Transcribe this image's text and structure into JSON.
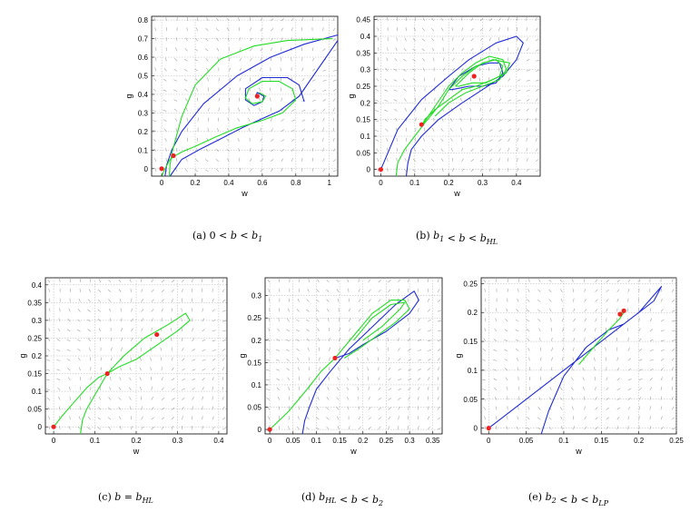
{
  "colors": {
    "blue": "#1f2bd6",
    "green": "#22dd22",
    "red": "#ee2222",
    "quiver": "#9a9a9a"
  },
  "chart_data": [
    {
      "id": "a",
      "type": "line",
      "title": "",
      "xlabel": "w",
      "ylabel": "g",
      "caption_label": "(a)",
      "caption_text": "0 < b < b1",
      "xlim": [
        -0.06,
        1.05
      ],
      "ylim": [
        -0.04,
        0.82
      ],
      "xticks": [
        0,
        0.2,
        0.4,
        0.6,
        0.8,
        1
      ],
      "yticks": [
        0,
        0.1,
        0.2,
        0.3,
        0.4,
        0.5,
        0.6,
        0.7,
        0.8
      ],
      "series": [
        {
          "name": "blue",
          "color": "blue",
          "x": [
            0.02,
            0.03,
            0.06,
            0.12,
            0.25,
            0.45,
            0.65,
            0.85,
            1.05
          ],
          "y": [
            -0.04,
            0.02,
            0.1,
            0.2,
            0.35,
            0.5,
            0.6,
            0.67,
            0.72
          ]
        },
        {
          "name": "blue",
          "color": "blue",
          "x": [
            0.05,
            0.12,
            0.22,
            0.35,
            0.48,
            0.6,
            0.7,
            0.82,
            1.05
          ],
          "y": [
            -0.04,
            0.05,
            0.1,
            0.16,
            0.22,
            0.27,
            0.31,
            0.39,
            0.69
          ]
        },
        {
          "name": "blue",
          "color": "blue",
          "x": [
            0.85,
            0.82,
            0.75,
            0.6,
            0.5,
            0.5,
            0.55,
            0.6,
            0.61,
            0.57,
            0.56
          ],
          "y": [
            0.36,
            0.45,
            0.49,
            0.49,
            0.43,
            0.37,
            0.34,
            0.36,
            0.39,
            0.41,
            0.39
          ]
        },
        {
          "name": "green",
          "color": "green",
          "x": [
            0.045,
            0.05,
            0.06,
            0.08,
            0.12,
            0.2,
            0.35,
            0.55,
            0.75,
            1.02
          ],
          "y": [
            -0.04,
            0.02,
            0.08,
            0.15,
            0.28,
            0.45,
            0.59,
            0.66,
            0.69,
            0.7
          ]
        },
        {
          "name": "green",
          "color": "green",
          "x": [
            0.08,
            0.12,
            0.2,
            0.32,
            0.45,
            0.6,
            0.72,
            0.8,
            0.78,
            0.7,
            0.6,
            0.52,
            0.5,
            0.54,
            0.6,
            0.62,
            0.58
          ],
          "y": [
            0.07,
            0.09,
            0.12,
            0.17,
            0.22,
            0.26,
            0.3,
            0.37,
            0.43,
            0.47,
            0.47,
            0.43,
            0.38,
            0.35,
            0.36,
            0.39,
            0.41
          ]
        },
        {
          "name": "green",
          "color": "green",
          "x": [
            0.0,
            0.02,
            0.05,
            0.08
          ],
          "y": [
            -0.04,
            0.0,
            0.05,
            0.07
          ]
        }
      ],
      "points": {
        "x": [
          0,
          0.07,
          0.57
        ],
        "y": [
          0,
          0.07,
          0.39
        ]
      }
    },
    {
      "id": "b",
      "type": "line",
      "title": "",
      "xlabel": "w",
      "ylabel": "g",
      "caption_label": "(b)",
      "caption_text": "b1 < b < bHL",
      "xlim": [
        -0.02,
        0.47
      ],
      "ylim": [
        -0.02,
        0.46
      ],
      "xticks": [
        0,
        0.1,
        0.2,
        0.3,
        0.4
      ],
      "yticks": [
        0,
        0.05,
        0.1,
        0.15,
        0.2,
        0.25,
        0.3,
        0.35,
        0.4,
        0.45
      ],
      "series": [
        {
          "name": "blue",
          "color": "blue",
          "x": [
            0.075,
            0.08,
            0.09,
            0.12,
            0.17,
            0.24,
            0.3,
            0.36,
            0.4,
            0.42,
            0.4,
            0.34,
            0.26,
            0.2,
            0.12,
            0.05,
            0.0
          ],
          "y": [
            -0.02,
            0.02,
            0.06,
            0.1,
            0.15,
            0.2,
            0.24,
            0.28,
            0.33,
            0.38,
            0.4,
            0.38,
            0.33,
            0.28,
            0.21,
            0.12,
            0.0
          ]
        },
        {
          "name": "blue",
          "color": "blue",
          "x": [
            0.2,
            0.23,
            0.28,
            0.32,
            0.35,
            0.36,
            0.34,
            0.3,
            0.26,
            0.21,
            0.2
          ],
          "y": [
            0.24,
            0.28,
            0.31,
            0.32,
            0.32,
            0.29,
            0.26,
            0.25,
            0.25,
            0.24,
            0.24
          ]
        },
        {
          "name": "green",
          "color": "green",
          "x": [
            0.045,
            0.05,
            0.07,
            0.1,
            0.13,
            0.17,
            0.2,
            0.24,
            0.28,
            0.33,
            0.38,
            0.37,
            0.33,
            0.28,
            0.24,
            0.2,
            0.16,
            0.13,
            0.12
          ],
          "y": [
            -0.02,
            0.02,
            0.06,
            0.1,
            0.14,
            0.19,
            0.24,
            0.28,
            0.31,
            0.33,
            0.32,
            0.29,
            0.27,
            0.25,
            0.24,
            0.21,
            0.18,
            0.15,
            0.13
          ]
        },
        {
          "name": "green",
          "color": "green",
          "x": [
            0.12,
            0.16,
            0.2,
            0.24,
            0.28,
            0.32,
            0.36,
            0.37,
            0.35,
            0.3,
            0.25,
            0.2,
            0.16
          ],
          "y": [
            0.13,
            0.19,
            0.25,
            0.29,
            0.32,
            0.34,
            0.33,
            0.3,
            0.27,
            0.25,
            0.23,
            0.2,
            0.16
          ]
        },
        {
          "name": "green",
          "color": "green",
          "x": [
            0.22,
            0.26,
            0.3,
            0.34,
            0.36,
            0.35,
            0.31,
            0.27,
            0.23,
            0.22
          ],
          "y": [
            0.25,
            0.29,
            0.32,
            0.33,
            0.31,
            0.28,
            0.26,
            0.26,
            0.25,
            0.25
          ]
        }
      ],
      "points": {
        "x": [
          0,
          0.12,
          0.275
        ],
        "y": [
          0,
          0.135,
          0.28
        ]
      }
    },
    {
      "id": "c",
      "type": "line",
      "title": "",
      "xlabel": "w",
      "ylabel": "g",
      "caption_label": "(c)",
      "caption_text": "b = bHL",
      "xlim": [
        -0.02,
        0.42
      ],
      "ylim": [
        -0.02,
        0.42
      ],
      "xticks": [
        0,
        0.1,
        0.2,
        0.3,
        0.4
      ],
      "yticks": [
        0,
        0.05,
        0.1,
        0.15,
        0.2,
        0.25,
        0.3,
        0.35,
        0.4
      ],
      "series": [
        {
          "name": "green",
          "color": "green",
          "x": [
            0.065,
            0.07,
            0.08,
            0.1,
            0.13,
            0.17,
            0.22,
            0.28,
            0.32,
            0.33,
            0.3,
            0.25,
            0.2,
            0.16,
            0.13
          ],
          "y": [
            -0.02,
            0.02,
            0.05,
            0.09,
            0.15,
            0.2,
            0.25,
            0.29,
            0.32,
            0.3,
            0.27,
            0.23,
            0.19,
            0.17,
            0.15
          ]
        },
        {
          "name": "green",
          "color": "green",
          "x": [
            0.0,
            0.02,
            0.05,
            0.08,
            0.11,
            0.13
          ],
          "y": [
            0.0,
            0.03,
            0.07,
            0.11,
            0.14,
            0.15
          ]
        }
      ],
      "points": {
        "x": [
          0,
          0.13,
          0.25
        ],
        "y": [
          0,
          0.15,
          0.26
        ]
      }
    },
    {
      "id": "d",
      "type": "line",
      "title": "",
      "xlabel": "w",
      "ylabel": "g",
      "caption_label": "(d)",
      "caption_text": "bHL < b < b2",
      "xlim": [
        -0.01,
        0.37
      ],
      "ylim": [
        -0.01,
        0.34
      ],
      "xticks": [
        0,
        0.05,
        0.1,
        0.15,
        0.2,
        0.25,
        0.3,
        0.35
      ],
      "yticks": [
        0,
        0.05,
        0.1,
        0.15,
        0.2,
        0.25,
        0.3
      ],
      "series": [
        {
          "name": "blue",
          "color": "blue",
          "x": [
            0.07,
            0.075,
            0.085,
            0.1,
            0.13,
            0.17,
            0.22,
            0.27,
            0.31,
            0.32,
            0.3,
            0.25,
            0.2,
            0.17,
            0.14
          ],
          "y": [
            -0.01,
            0.02,
            0.05,
            0.09,
            0.13,
            0.18,
            0.23,
            0.28,
            0.31,
            0.29,
            0.26,
            0.22,
            0.19,
            0.17,
            0.16
          ]
        },
        {
          "name": "green",
          "color": "green",
          "x": [
            0.0,
            0.04,
            0.08,
            0.11,
            0.14
          ],
          "y": [
            0.0,
            0.04,
            0.09,
            0.13,
            0.16
          ]
        },
        {
          "name": "green",
          "color": "green",
          "x": [
            0.14,
            0.18,
            0.22,
            0.26,
            0.29,
            0.3,
            0.27,
            0.23,
            0.19,
            0.16
          ],
          "y": [
            0.16,
            0.21,
            0.26,
            0.29,
            0.29,
            0.27,
            0.24,
            0.21,
            0.18,
            0.16
          ]
        },
        {
          "name": "green",
          "color": "green",
          "x": [
            0.18,
            0.22,
            0.26,
            0.29,
            0.28,
            0.24,
            0.2
          ],
          "y": [
            0.2,
            0.25,
            0.28,
            0.285,
            0.27,
            0.23,
            0.2
          ]
        }
      ],
      "points": {
        "x": [
          0,
          0.14
        ],
        "y": [
          0,
          0.16
        ]
      }
    },
    {
      "id": "e",
      "type": "line",
      "title": "",
      "xlabel": "w",
      "ylabel": "g",
      "caption_label": "(e)",
      "caption_text": "b2 < b < bLP",
      "xlim": [
        -0.01,
        0.25
      ],
      "ylim": [
        -0.01,
        0.26
      ],
      "xticks": [
        0,
        0.05,
        0.1,
        0.15,
        0.2,
        0.25
      ],
      "yticks": [
        0,
        0.05,
        0.1,
        0.15,
        0.2,
        0.25
      ],
      "series": [
        {
          "name": "blue",
          "color": "blue",
          "x": [
            0.0,
            0.02,
            0.05,
            0.08,
            0.11,
            0.14,
            0.17,
            0.2,
            0.23,
            0.22,
            0.2,
            0.18,
            0.16,
            0.13,
            0.1,
            0.08,
            0.07
          ],
          "y": [
            0.0,
            0.02,
            0.05,
            0.08,
            0.11,
            0.14,
            0.17,
            0.2,
            0.245,
            0.22,
            0.2,
            0.18,
            0.17,
            0.14,
            0.09,
            0.03,
            -0.01
          ]
        },
        {
          "name": "green",
          "color": "green",
          "x": [
            0.12,
            0.14,
            0.16,
            0.175,
            0.18,
            0.175
          ],
          "y": [
            0.11,
            0.14,
            0.17,
            0.19,
            0.2,
            0.2
          ]
        }
      ],
      "points": {
        "x": [
          0,
          0.175,
          0.18
        ],
        "y": [
          0,
          0.197,
          0.203
        ]
      }
    }
  ]
}
